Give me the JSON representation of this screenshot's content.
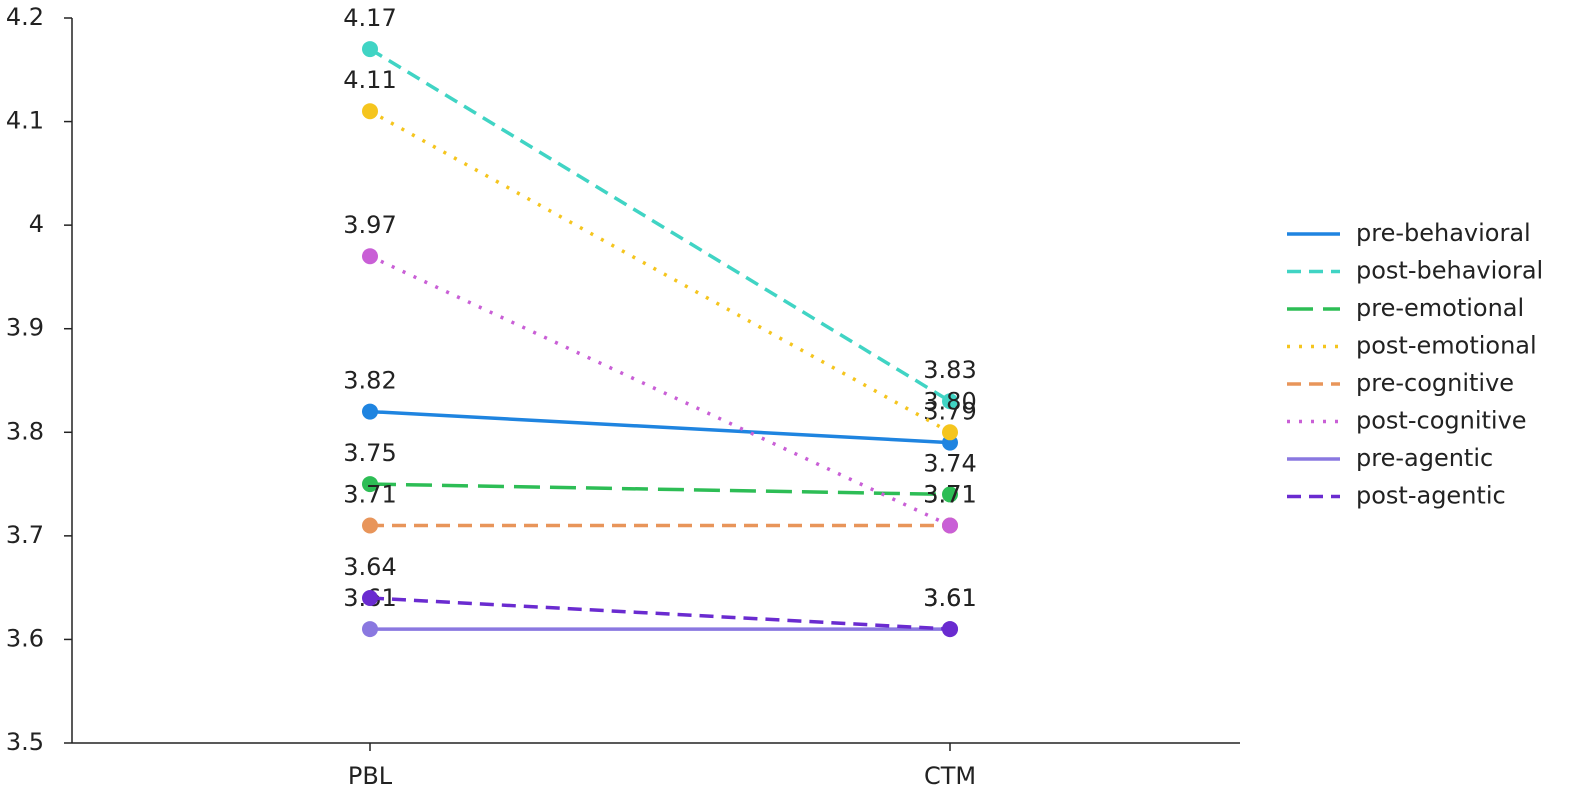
{
  "chart_data": {
    "type": "line",
    "categories": [
      "PBL",
      "CTM"
    ],
    "ylim": [
      3.5,
      4.2
    ],
    "yticks": [
      3.5,
      3.6,
      3.7,
      3.8,
      3.9,
      4,
      4.1,
      4.2
    ],
    "grid": false,
    "legend": "right",
    "series": [
      {
        "name": "pre-behavioral",
        "color": "#1f84e0",
        "dash": "solid",
        "values": [
          3.82,
          3.79
        ],
        "value_labels": [
          "3.82",
          "3.79"
        ]
      },
      {
        "name": "post-behavioral",
        "color": "#40d4c4",
        "dash": "dashed",
        "values": [
          4.17,
          3.83
        ],
        "value_labels": [
          "4.17",
          "3.83"
        ]
      },
      {
        "name": "pre-emotional",
        "color": "#2dbd55",
        "dash": "longdash",
        "values": [
          3.75,
          3.74
        ],
        "value_labels": [
          "3.75",
          "3.74"
        ]
      },
      {
        "name": "post-emotional",
        "color": "#f5c51e",
        "dash": "dotted",
        "values": [
          4.11,
          3.8
        ],
        "value_labels": [
          "4.11",
          "3.80"
        ]
      },
      {
        "name": "pre-cognitive",
        "color": "#e8955a",
        "dash": "dashed",
        "values": [
          3.71,
          3.71
        ],
        "value_labels": [
          "3.71",
          "3.71"
        ]
      },
      {
        "name": "post-cognitive",
        "color": "#c95fd6",
        "dash": "dotted",
        "values": [
          3.97,
          3.71
        ],
        "value_labels": [
          "3.97",
          "3.71"
        ]
      },
      {
        "name": "pre-agentic",
        "color": "#8a78e0",
        "dash": "solid",
        "values": [
          3.61,
          3.61
        ],
        "value_labels": [
          "3.61",
          "3.61"
        ]
      },
      {
        "name": "post-agentic",
        "color": "#6a2bd0",
        "dash": "dashed",
        "values": [
          3.64,
          3.61
        ],
        "value_labels": [
          "3.64",
          "3.61"
        ]
      }
    ]
  }
}
